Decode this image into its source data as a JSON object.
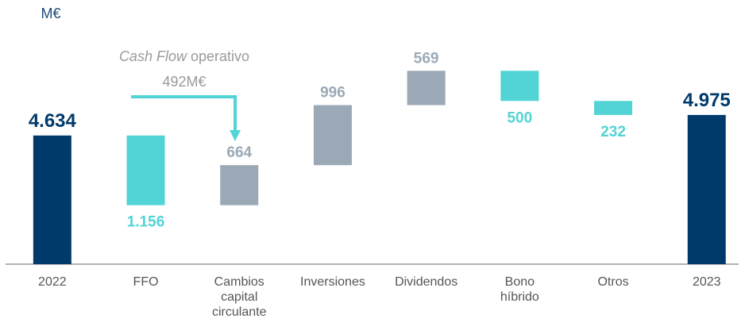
{
  "chart_data": {
    "type": "waterfall",
    "unit_label": "M€",
    "categories": [
      "2022",
      "FFO",
      "Cambios capital circulante",
      "Inversiones",
      "Dividendos",
      "Bono híbrido",
      "Otros",
      "2023"
    ],
    "measure": [
      "total",
      "relative",
      "relative",
      "relative",
      "relative",
      "relative",
      "relative",
      "total"
    ],
    "values": [
      4634,
      -1156,
      664,
      996,
      569,
      -500,
      -232,
      4975
    ],
    "value_labels": [
      "4.634",
      "1.156",
      "664",
      "996",
      "569",
      "500",
      "232",
      "4.975"
    ],
    "colors": [
      "#003a6b",
      "#52d3d5",
      "#9ba9b6",
      "#9ba9b6",
      "#9ba9b6",
      "#52d3d5",
      "#52d3d5",
      "#003a6b"
    ],
    "ylim": [
      2500,
      6000
    ],
    "annotation": {
      "italic_text": "Cash Flow",
      "text": "operativo",
      "value_text": "492M€"
    }
  }
}
